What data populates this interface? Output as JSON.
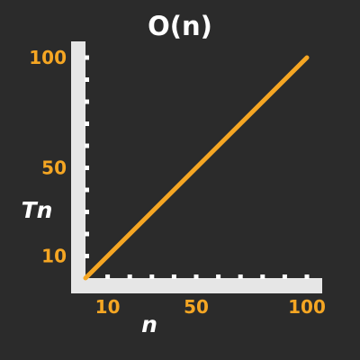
{
  "chart_data": {
    "type": "line",
    "title": "O(n)",
    "xlabel": "n",
    "ylabel": "Tn",
    "x_ticks": [
      10,
      50,
      100
    ],
    "y_ticks": [
      10,
      50,
      100
    ],
    "xlim": [
      0,
      100
    ],
    "ylim": [
      0,
      100
    ],
    "grid": false,
    "series": [
      {
        "x": [
          0,
          100
        ],
        "values": [
          0,
          100
        ]
      }
    ],
    "colors": {
      "background": "#2b2b2b",
      "axis": "#e6e6e6",
      "tick_mark": "#ffffff",
      "line": "#f5a623",
      "tick_label": "#f5a623",
      "text": "#ffffff"
    }
  }
}
